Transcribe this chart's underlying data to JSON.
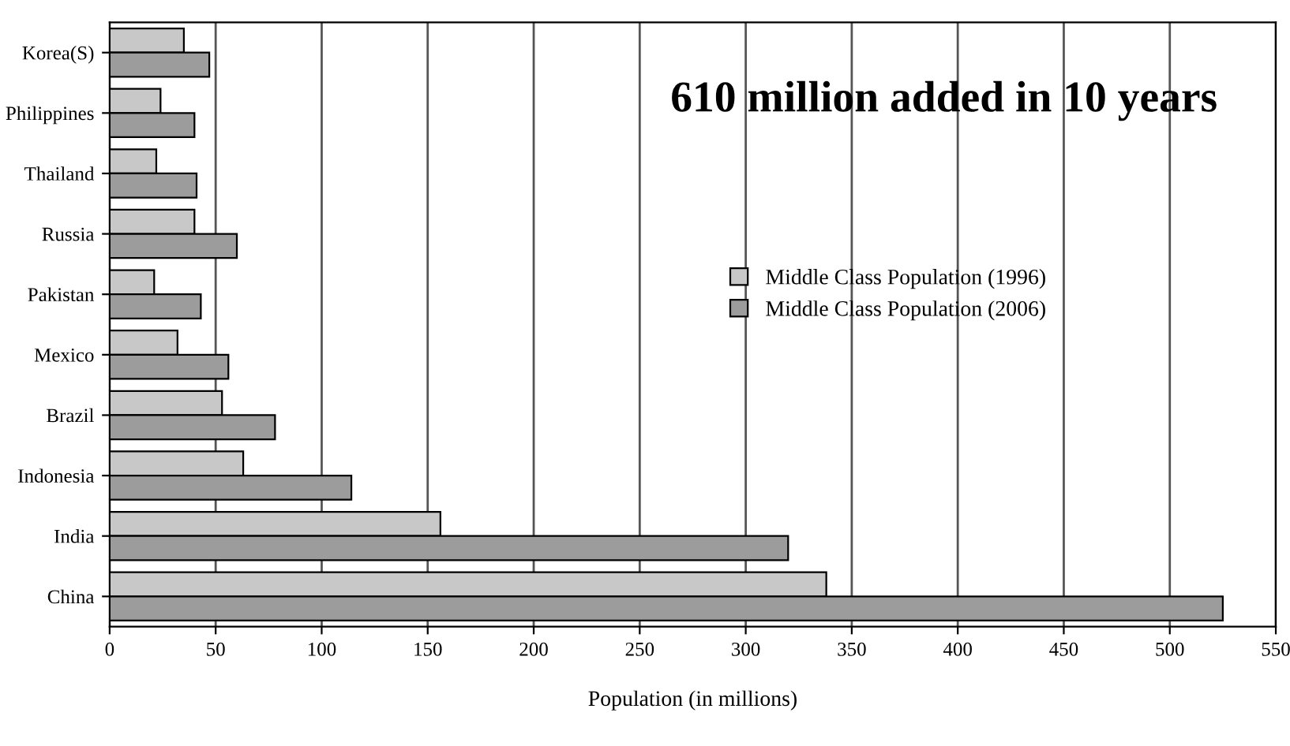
{
  "chart_data": {
    "type": "bar",
    "orientation": "horizontal",
    "xlabel": "Population (in millions)",
    "annotations": [
      "610 million added in 10 years"
    ],
    "categories": [
      "Korea(S)",
      "Philippines",
      "Thailand",
      "Russia",
      "Pakistan",
      "Mexico",
      "Brazil",
      "Indonesia",
      "India",
      "China"
    ],
    "series": [
      {
        "name": "Middle Class Population (1996)",
        "color": "#c8c8c8",
        "values": [
          35,
          24,
          22,
          40,
          21,
          32,
          53,
          63,
          156,
          338
        ]
      },
      {
        "name": "Middle Class Population (2006)",
        "color": "#9c9c9c",
        "values": [
          47,
          40,
          41,
          60,
          43,
          56,
          78,
          114,
          320,
          525
        ]
      }
    ],
    "xlim": [
      0,
      550
    ],
    "xticks": [
      0,
      50,
      100,
      150,
      200,
      250,
      300,
      350,
      400,
      450,
      500,
      550
    ],
    "grid": "x",
    "legend": "right"
  }
}
